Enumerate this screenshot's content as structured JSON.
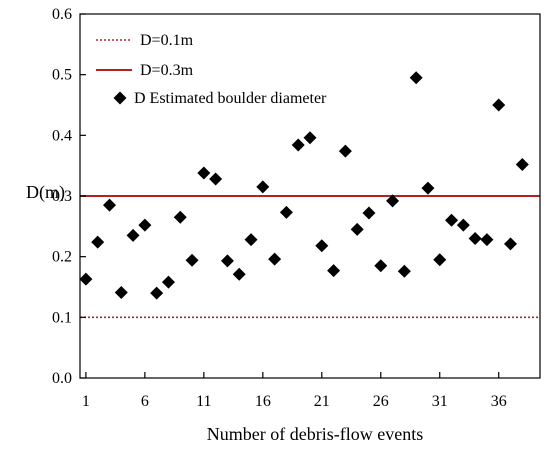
{
  "chart_data": {
    "type": "scatter",
    "xlabel": "Number of debris-flow events",
    "ylabel": "D(m)",
    "xlim": [
      0.5,
      39.5
    ],
    "ylim": [
      0,
      0.6
    ],
    "x_ticks": [
      1,
      6,
      11,
      16,
      21,
      26,
      31,
      36
    ],
    "y_ticks": [
      0,
      0.1,
      0.2,
      0.3,
      0.4,
      0.5,
      0.6
    ],
    "grid": false,
    "legend_position": "top-left",
    "reference_lines": [
      {
        "name": "D=0.1m",
        "y": 0.1,
        "style": "dotted",
        "color": "#a52a2a"
      },
      {
        "name": "D=0.3m",
        "y": 0.3,
        "style": "solid",
        "color": "#b22222"
      }
    ],
    "series": [
      {
        "name": "D Estimated boulder diameter",
        "marker": "diamond",
        "color": "#000000",
        "points": [
          [
            1,
            0.163
          ],
          [
            2,
            0.224
          ],
          [
            3,
            0.285
          ],
          [
            4,
            0.141
          ],
          [
            5,
            0.235
          ],
          [
            6,
            0.252
          ],
          [
            7,
            0.14
          ],
          [
            8,
            0.158
          ],
          [
            9,
            0.265
          ],
          [
            10,
            0.194
          ],
          [
            11,
            0.338
          ],
          [
            12,
            0.328
          ],
          [
            13,
            0.193
          ],
          [
            14,
            0.171
          ],
          [
            15,
            0.228
          ],
          [
            16,
            0.315
          ],
          [
            17,
            0.196
          ],
          [
            18,
            0.273
          ],
          [
            19,
            0.384
          ],
          [
            20,
            0.396
          ],
          [
            21,
            0.218
          ],
          [
            22,
            0.177
          ],
          [
            23,
            0.374
          ],
          [
            24,
            0.245
          ],
          [
            25,
            0.272
          ],
          [
            26,
            0.185
          ],
          [
            27,
            0.292
          ],
          [
            28,
            0.176
          ],
          [
            29,
            0.495
          ],
          [
            30,
            0.313
          ],
          [
            31,
            0.195
          ],
          [
            32,
            0.26
          ],
          [
            33,
            0.252
          ],
          [
            34,
            0.23
          ],
          [
            35,
            0.228
          ],
          [
            36,
            0.45
          ],
          [
            37,
            0.221
          ],
          [
            38,
            0.352
          ]
        ]
      }
    ]
  }
}
